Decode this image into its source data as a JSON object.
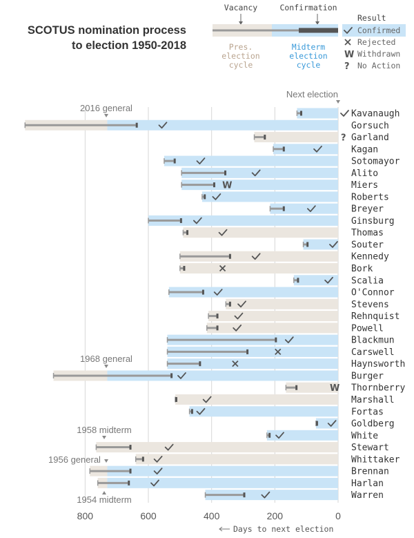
{
  "title_line1": "SCOTUS nomination process",
  "title_line2": "to election 1950-2018",
  "legend": {
    "vacancy": "Vacancy",
    "confirmation": "Confirmation",
    "result_title": "Result",
    "pres_cycle": [
      "Pres.",
      "election",
      "cycle"
    ],
    "mid_cycle": [
      "Midterm",
      "election",
      "cycle"
    ],
    "confirmed": "Confirmed",
    "rejected": "Rejected",
    "withdrawn": "Withdrawn",
    "no_action": "No Action"
  },
  "colors": {
    "pres_band": "#ebe6df",
    "mid_band": "#c9e4f7",
    "light_line": "#999999",
    "dark_bar": "#555555",
    "grid": "#d6d6d6",
    "pres_text": "#b9a48f",
    "mid_text": "#3a9ad9",
    "axis_text": "#555555",
    "label_text": "#333333"
  },
  "chart_data": {
    "type": "gantt",
    "x_label": "Days to next election",
    "x_ticks": [
      800,
      600,
      400,
      200,
      0
    ],
    "x_reversed": true,
    "annotations": {
      "next_election": "Next election",
      "g2016": "2016 general",
      "g1968": "1968 general",
      "m1958": "1958 midterm",
      "g1956": "1956 general",
      "m1954": "1954 midterm"
    },
    "result_symbols": {
      "confirmed": "✓",
      "rejected": "×",
      "withdrawn": "W",
      "no_action": "?"
    },
    "nominees": [
      {
        "name": "Kavanaugh",
        "cycle_start": 130,
        "pres_until": null,
        "vacancy": 130,
        "nomination": 120,
        "confirmation": 0,
        "result": "confirmed"
      },
      {
        "name": "Gorsuch",
        "cycle_start": 990,
        "pres_until": 730,
        "vacancy": 990,
        "nomination": 640,
        "confirmation": 575,
        "result": "confirmed"
      },
      {
        "name": "Garland",
        "cycle_start": 265,
        "pres_until": 0,
        "vacancy": 265,
        "nomination": 235,
        "confirmation": 0,
        "result": "no_action"
      },
      {
        "name": "Kagan",
        "cycle_start": 205,
        "pres_until": null,
        "vacancy": 205,
        "nomination": 175,
        "confirmation": 85,
        "result": "confirmed"
      },
      {
        "name": "Sotomayor",
        "cycle_start": 550,
        "pres_until": null,
        "vacancy": 550,
        "nomination": 520,
        "confirmation": 455,
        "result": "confirmed"
      },
      {
        "name": "Alito",
        "cycle_start": 495,
        "pres_until": null,
        "vacancy": 495,
        "nomination": 360,
        "confirmation": 280,
        "result": "confirmed"
      },
      {
        "name": "Miers",
        "cycle_start": 495,
        "pres_until": null,
        "vacancy": 495,
        "nomination": 395,
        "confirmation": 375,
        "result": "withdrawn"
      },
      {
        "name": "Roberts",
        "cycle_start": 430,
        "pres_until": null,
        "vacancy": 430,
        "nomination": 425,
        "confirmation": 405,
        "result": "confirmed"
      },
      {
        "name": "Breyer",
        "cycle_start": 215,
        "pres_until": null,
        "vacancy": 215,
        "nomination": 175,
        "confirmation": 105,
        "result": "confirmed"
      },
      {
        "name": "Ginsburg",
        "cycle_start": 600,
        "pres_until": null,
        "vacancy": 600,
        "nomination": 500,
        "confirmation": 465,
        "result": "confirmed"
      },
      {
        "name": "Thomas",
        "cycle_start": 490,
        "pres_until": 0,
        "vacancy": 490,
        "nomination": 480,
        "confirmation": 385,
        "result": "confirmed"
      },
      {
        "name": "Souter",
        "cycle_start": 110,
        "pres_until": null,
        "vacancy": 110,
        "nomination": 100,
        "confirmation": 35,
        "result": "confirmed"
      },
      {
        "name": "Kennedy",
        "cycle_start": 500,
        "pres_until": 0,
        "vacancy": 500,
        "nomination": 345,
        "confirmation": 280,
        "result": "confirmed"
      },
      {
        "name": "Bork",
        "cycle_start": 500,
        "pres_until": 0,
        "vacancy": 500,
        "nomination": 490,
        "confirmation": 385,
        "result": "rejected"
      },
      {
        "name": "Scalia",
        "cycle_start": 140,
        "pres_until": null,
        "vacancy": 140,
        "nomination": 130,
        "confirmation": 50,
        "result": "confirmed"
      },
      {
        "name": "O'Connor",
        "cycle_start": 535,
        "pres_until": null,
        "vacancy": 535,
        "nomination": 430,
        "confirmation": 400,
        "result": "confirmed"
      },
      {
        "name": "Stevens",
        "cycle_start": 355,
        "pres_until": 0,
        "vacancy": 355,
        "nomination": 345,
        "confirmation": 325,
        "result": "confirmed"
      },
      {
        "name": "Rehnquist",
        "cycle_start": 410,
        "pres_until": 0,
        "vacancy": 410,
        "nomination": 385,
        "confirmation": 335,
        "result": "confirmed"
      },
      {
        "name": "Powell",
        "cycle_start": 415,
        "pres_until": 0,
        "vacancy": 415,
        "nomination": 385,
        "confirmation": 340,
        "result": "confirmed"
      },
      {
        "name": "Blackmun",
        "cycle_start": 540,
        "pres_until": null,
        "vacancy": 540,
        "nomination": 200,
        "confirmation": 175,
        "result": "confirmed"
      },
      {
        "name": "Carswell",
        "cycle_start": 540,
        "pres_until": null,
        "vacancy": 540,
        "nomination": 290,
        "confirmation": 210,
        "result": "rejected"
      },
      {
        "name": "Haynsworth",
        "cycle_start": 540,
        "pres_until": null,
        "vacancy": 540,
        "nomination": 440,
        "confirmation": 345,
        "result": "rejected"
      },
      {
        "name": "Burger",
        "cycle_start": 900,
        "pres_until": 730,
        "vacancy": 900,
        "nomination": 530,
        "confirmation": 515,
        "result": "confirmed"
      },
      {
        "name": "Thornberry",
        "cycle_start": 165,
        "pres_until": 0,
        "vacancy": 165,
        "nomination": 135,
        "confirmation": 35,
        "result": "withdrawn"
      },
      {
        "name": "Marshall",
        "cycle_start": 515,
        "pres_until": 0,
        "vacancy": 515,
        "nomination": 515,
        "confirmation": 435,
        "result": "confirmed"
      },
      {
        "name": "Fortas",
        "cycle_start": 470,
        "pres_until": null,
        "vacancy": 470,
        "nomination": 465,
        "confirmation": 455,
        "result": "confirmed"
      },
      {
        "name": "Goldberg",
        "cycle_start": 70,
        "pres_until": null,
        "vacancy": 70,
        "nomination": 70,
        "confirmation": 40,
        "result": "confirmed"
      },
      {
        "name": "White",
        "cycle_start": 225,
        "pres_until": null,
        "vacancy": 225,
        "nomination": 220,
        "confirmation": 205,
        "result": "confirmed"
      },
      {
        "name": "Stewart",
        "cycle_start": 765,
        "pres_until": 0,
        "vacancy": 765,
        "nomination": 660,
        "confirmation": 555,
        "result": "confirmed"
      },
      {
        "name": "Whittaker",
        "cycle_start": 640,
        "pres_until": 0,
        "vacancy": 640,
        "nomination": 620,
        "confirmation": 590,
        "result": "confirmed"
      },
      {
        "name": "Brennan",
        "cycle_start": 785,
        "pres_until": 730,
        "vacancy": 785,
        "nomination": 660,
        "confirmation": 590,
        "result": "confirmed"
      },
      {
        "name": "Harlan",
        "cycle_start": 760,
        "pres_until": 730,
        "vacancy": 760,
        "nomination": 665,
        "confirmation": 600,
        "result": "confirmed"
      },
      {
        "name": "Warren",
        "cycle_start": 420,
        "pres_until": null,
        "vacancy": 420,
        "nomination": 300,
        "confirmation": 250,
        "result": "confirmed"
      }
    ]
  }
}
